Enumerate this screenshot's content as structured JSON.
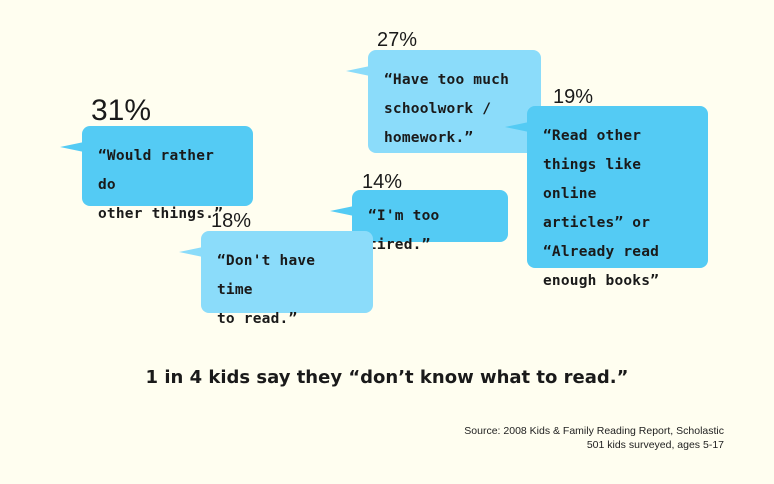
{
  "chart_data": {
    "type": "bubbles",
    "items": [
      {
        "label": "“Would rather do other things.”",
        "value": 31,
        "display": "31%",
        "color": "#54cbf4"
      },
      {
        "label": "“Have too much schoolwork / homework.”",
        "value": 27,
        "display": "27%",
        "color": "#8bdcfa"
      },
      {
        "label": "“Read other things like online articles” or “Already read enough books”",
        "value": 19,
        "display": "19%",
        "color": "#54cbf4"
      },
      {
        "label": "“Don't have time to read.”",
        "value": 18,
        "display": "18%",
        "color": "#8bdcfa"
      },
      {
        "label": "“I'm too tired.”",
        "value": 14,
        "display": "14%",
        "color": "#54cbf4"
      }
    ]
  },
  "bubbles": {
    "b31": {
      "pct": "31%",
      "lines": [
        "“Would rather do",
        "other things.”"
      ]
    },
    "b27": {
      "pct": "27%",
      "lines": [
        "“Have too much",
        "schoolwork /",
        "homework.”"
      ]
    },
    "b19": {
      "pct": "19%",
      "lines": [
        "“Read other",
        "things like online",
        "articles” or",
        "“Already read",
        "enough books”"
      ]
    },
    "b18": {
      "pct": "18%",
      "lines": [
        "“Don't have time",
        "to read.”"
      ]
    },
    "b14": {
      "pct": "14%",
      "lines": [
        "“I'm too tired.”"
      ]
    }
  },
  "tagline": "1 in 4 kids say they “don’t know what to read.”",
  "source": {
    "line1": "Source: 2008 Kids & Family Reading Report, Scholastic",
    "line2": "501 kids surveyed, ages 5-17"
  },
  "colors": {
    "background": "#fffef0",
    "bubble_dark": "#54cbf4",
    "bubble_light": "#8bdcfa",
    "text": "#1a1a1a"
  }
}
